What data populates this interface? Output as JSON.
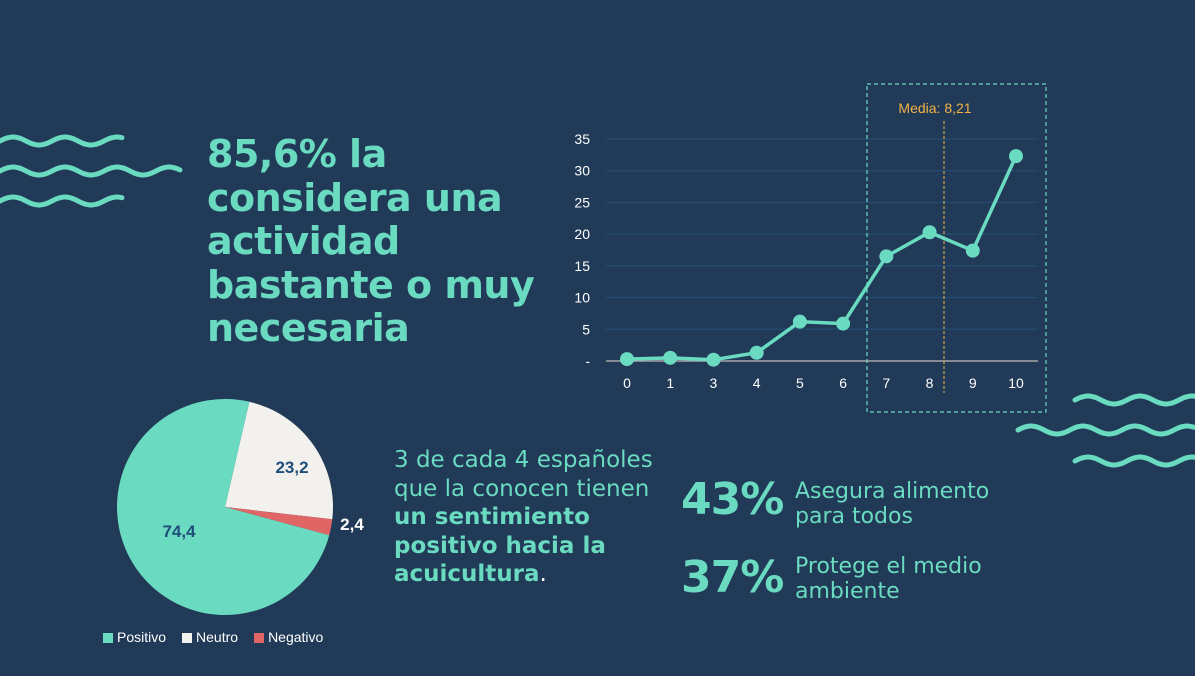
{
  "headline": "85,6% la considera una actividad bastante o muy necesaria",
  "paragraph": {
    "plain": "3 de cada 4 españoles que la conocen tienen",
    "bold": "un sentimiento positivo hacia la acuicultura",
    "end": "."
  },
  "stats": [
    {
      "value": "43%",
      "label": "Asegura alimento para todos"
    },
    {
      "value": "37%",
      "label": "Protege el medio ambiente"
    }
  ],
  "colors": {
    "background": "#213a57",
    "accent": "#6adbc1",
    "neutral": "#f2f1ee",
    "negative": "#e06666",
    "median": "#f2b246"
  },
  "chart_data": [
    {
      "type": "pie",
      "slices": [
        {
          "name": "Neutro",
          "value": 23.2,
          "label": "23,2",
          "color": "#f2f1ee"
        },
        {
          "name": "Negativo",
          "value": 2.4,
          "label": "2,4",
          "color": "#e06666"
        },
        {
          "name": "Positivo",
          "value": 74.4,
          "label": "74,4",
          "color": "#6adbc1"
        }
      ],
      "legend": [
        "Positivo",
        "Neutro",
        "Negativo"
      ],
      "legend_position": "bottom"
    },
    {
      "type": "line",
      "categories": [
        "0",
        "1",
        "3",
        "4",
        "5",
        "6",
        "7",
        "8",
        "9",
        "10"
      ],
      "values": [
        0.3,
        0.5,
        0.2,
        1.3,
        6.2,
        5.9,
        16.5,
        20.3,
        17.4,
        32.3
      ],
      "yticks": [
        "-",
        "5",
        "10",
        "15",
        "20",
        "25",
        "30",
        "35"
      ],
      "ylim": [
        0,
        35
      ],
      "grid": true,
      "annotation": {
        "label": "Media: 8,21",
        "value": 8.21
      }
    }
  ]
}
